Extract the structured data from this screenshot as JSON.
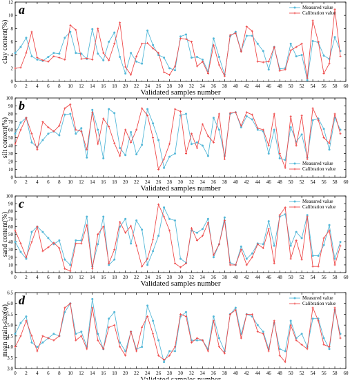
{
  "colors": {
    "measured": "#55b8d8",
    "calibration": "#ee4a4a",
    "axis": "#000000"
  },
  "chart_data": [
    {
      "type": "line",
      "panel_label": "a",
      "xlabel": "Validated samples number",
      "ylabel": "clay content(%)",
      "xlim": [
        0,
        60
      ],
      "ylim": [
        0,
        12
      ],
      "x_ticks": [
        0,
        2,
        4,
        6,
        8,
        10,
        12,
        14,
        16,
        18,
        20,
        22,
        24,
        26,
        28,
        30,
        32,
        34,
        36,
        38,
        40,
        42,
        44,
        46,
        48,
        50,
        52,
        54,
        56,
        58,
        60
      ],
      "y_ticks": [
        0,
        2,
        4,
        6,
        8,
        10,
        12
      ],
      "legend_position": "top-right",
      "series": [
        {
          "name": "Measured value",
          "values": [
            4.3,
            5.2,
            6.6,
            3.8,
            3.3,
            3.1,
            3.7,
            4.3,
            4.2,
            6.6,
            7.5,
            4.3,
            4.2,
            3.4,
            7.9,
            4.2,
            3.2,
            6.0,
            7.4,
            3.7,
            1.2,
            4.3,
            3.0,
            2.7,
            7.7,
            5.5,
            4.0,
            3.6,
            2.0,
            1.7,
            6.8,
            7.1,
            3.6,
            3.7,
            3.3,
            1.5,
            6.5,
            3.7,
            1.0,
            6.8,
            7.5,
            4.6,
            6.9,
            6.9,
            5.7,
            4.6,
            1.8,
            5.2,
            1.9,
            2.0,
            5.7,
            3.8,
            4.0,
            0.2,
            6.1,
            5.9,
            3.9,
            3.4,
            6.7,
            4.6
          ]
        },
        {
          "name": "Calibration value",
          "values": [
            2.0,
            2.1,
            4.3,
            7.5,
            3.6,
            3.2,
            3.0,
            3.8,
            3.6,
            3.3,
            8.5,
            7.8,
            3.4,
            3.5,
            3.3,
            8.0,
            4.3,
            3.2,
            5.7,
            8.9,
            2.2,
            1.0,
            3.8,
            5.7,
            5.8,
            5.0,
            4.3,
            1.4,
            1.0,
            2.3,
            6.5,
            6.4,
            6.0,
            2.3,
            3.0,
            1.2,
            5.5,
            2.5,
            0.8,
            7.0,
            7.3,
            4.5,
            8.3,
            7.6,
            3.0,
            2.9,
            3.0,
            5.2,
            1.6,
            1.8,
            4.7,
            5.2,
            5.7,
            0.5,
            9.2,
            6.0,
            1.2,
            2.7,
            10.9,
            3.8
          ]
        }
      ]
    },
    {
      "type": "line",
      "panel_label": "b",
      "xlabel": "Validated samples number",
      "ylabel": "silt content(%)",
      "xlim": [
        0,
        60
      ],
      "ylim": [
        0,
        100
      ],
      "x_ticks": [
        0,
        2,
        4,
        6,
        8,
        10,
        12,
        14,
        16,
        18,
        20,
        22,
        24,
        26,
        28,
        30,
        32,
        34,
        36,
        38,
        40,
        42,
        44,
        46,
        48,
        50,
        52,
        54,
        56,
        58,
        60
      ],
      "y_ticks": [
        0,
        10,
        20,
        30,
        40,
        50,
        60,
        70,
        80,
        90,
        100
      ],
      "legend_position": "bottom-right",
      "series": [
        {
          "name": "Measured value",
          "values": [
            55,
            69,
            75,
            44,
            38,
            47,
            55,
            58,
            53,
            79,
            80,
            55,
            62,
            25,
            85,
            60,
            24,
            86,
            81,
            37,
            28,
            57,
            29,
            41,
            86,
            68,
            47,
            12,
            26,
            30,
            78,
            80,
            42,
            44,
            40,
            27,
            75,
            60,
            27,
            80,
            82,
            63,
            77,
            73,
            60,
            58,
            30,
            60,
            24,
            22,
            63,
            45,
            54,
            25,
            72,
            74,
            61,
            35,
            75,
            60
          ]
        },
        {
          "name": "Calibration value",
          "values": [
            42,
            60,
            75,
            55,
            35,
            70,
            63,
            58,
            65,
            87,
            92,
            60,
            58,
            35,
            82,
            42,
            74,
            64,
            43,
            27,
            60,
            44,
            60,
            87,
            78,
            50,
            10,
            23,
            42,
            86,
            83,
            30,
            55,
            37,
            67,
            52,
            44,
            80,
            23,
            81,
            82,
            65,
            82,
            79,
            62,
            60,
            40,
            80,
            30,
            12,
            77,
            40,
            78,
            23,
            87,
            72,
            50,
            43,
            80,
            55
          ]
        }
      ]
    },
    {
      "type": "line",
      "panel_label": "c",
      "xlabel": "Validated samples number",
      "ylabel": "sand content(%)",
      "xlim": [
        0,
        60
      ],
      "ylim": [
        0,
        100
      ],
      "x_ticks": [
        0,
        2,
        4,
        6,
        8,
        10,
        12,
        14,
        16,
        18,
        20,
        22,
        24,
        26,
        28,
        30,
        32,
        34,
        36,
        38,
        40,
        42,
        44,
        46,
        48,
        50,
        52,
        54,
        56,
        58,
        60
      ],
      "y_ticks": [
        0,
        10,
        20,
        30,
        40,
        50,
        60,
        70,
        80,
        90,
        100
      ],
      "legend_position": "top-right",
      "series": [
        {
          "name": "Measured value",
          "values": [
            40,
            27,
            18,
            53,
            60,
            53,
            45,
            37,
            42,
            17,
            10,
            42,
            42,
            73,
            8,
            37,
            73,
            10,
            17,
            60,
            70,
            38,
            68,
            56,
            10,
            28,
            48,
            85,
            70,
            68,
            18,
            13,
            55,
            52,
            57,
            70,
            20,
            37,
            72,
            13,
            10,
            34,
            18,
            25,
            38,
            37,
            67,
            35,
            73,
            76,
            35,
            53,
            45,
            75,
            22,
            22,
            36,
            62,
            18,
            40
          ]
        },
        {
          "name": "Calibration value",
          "values": [
            55,
            38,
            20,
            40,
            60,
            28,
            33,
            39,
            32,
            5,
            2,
            38,
            38,
            62,
            5,
            50,
            60,
            12,
            30,
            66,
            52,
            61,
            35,
            8,
            18,
            43,
            89,
            73,
            55,
            12,
            7,
            12,
            58,
            42,
            48,
            65,
            23,
            37,
            68,
            10,
            10,
            30,
            10,
            20,
            37,
            32,
            57,
            12,
            75,
            85,
            18,
            42,
            17,
            73,
            8,
            8,
            45,
            55,
            10,
            35
          ]
        }
      ]
    },
    {
      "type": "line",
      "panel_label": "d",
      "xlabel": "Validated samples number",
      "ylabel": "mean grain-size(φ)",
      "xlim": [
        0,
        60
      ],
      "ylim": [
        3.0,
        6.5
      ],
      "x_ticks": [
        0,
        2,
        4,
        6,
        8,
        10,
        12,
        14,
        16,
        18,
        20,
        22,
        24,
        26,
        28,
        30,
        32,
        34,
        36,
        38,
        40,
        42,
        44,
        46,
        48,
        50,
        52,
        54,
        56,
        58,
        60
      ],
      "y_ticks": [
        3.0,
        3.5,
        4.0,
        4.5,
        5.0,
        5.5,
        6.0,
        6.5
      ],
      "legend_position": "top-right",
      "series": [
        {
          "name": "Measured value",
          "values": [
            4.6,
            5.1,
            5.4,
            4.2,
            4.0,
            4.2,
            4.4,
            4.6,
            4.5,
            5.6,
            6.0,
            4.6,
            4.7,
            4.0,
            6.2,
            4.6,
            3.9,
            5.3,
            5.6,
            4.2,
            3.8,
            4.7,
            3.9,
            4.0,
            5.9,
            5.2,
            4.3,
            3.3,
            3.8,
            3.8,
            5.4,
            5.6,
            4.3,
            4.3,
            4.3,
            3.9,
            5.4,
            4.4,
            3.8,
            5.5,
            5.8,
            4.6,
            5.5,
            5.4,
            5.0,
            4.7,
            3.9,
            5.1,
            3.9,
            3.8,
            5.2,
            4.4,
            4.6,
            4.0,
            5.3,
            5.3,
            4.4,
            3.9,
            5.7,
            4.6
          ]
        },
        {
          "name": "Calibration value",
          "values": [
            4.0,
            4.5,
            5.2,
            4.5,
            3.8,
            4.5,
            4.4,
            4.3,
            4.5,
            5.8,
            6.0,
            4.3,
            4.5,
            3.9,
            5.8,
            4.3,
            3.9,
            4.9,
            5.0,
            4.0,
            3.6,
            4.7,
            3.8,
            4.9,
            5.4,
            4.6,
            3.6,
            3.4,
            3.6,
            4.0,
            5.5,
            5.4,
            4.2,
            4.4,
            4.3,
            3.8,
            5.2,
            4.0,
            3.7,
            5.5,
            5.7,
            4.4,
            5.5,
            5.5,
            4.7,
            4.6,
            3.8,
            5.2,
            3.6,
            3.3,
            5.0,
            4.3,
            4.1,
            3.9,
            5.8,
            5.2,
            4.1,
            4.0,
            5.8,
            4.4
          ]
        }
      ]
    }
  ]
}
